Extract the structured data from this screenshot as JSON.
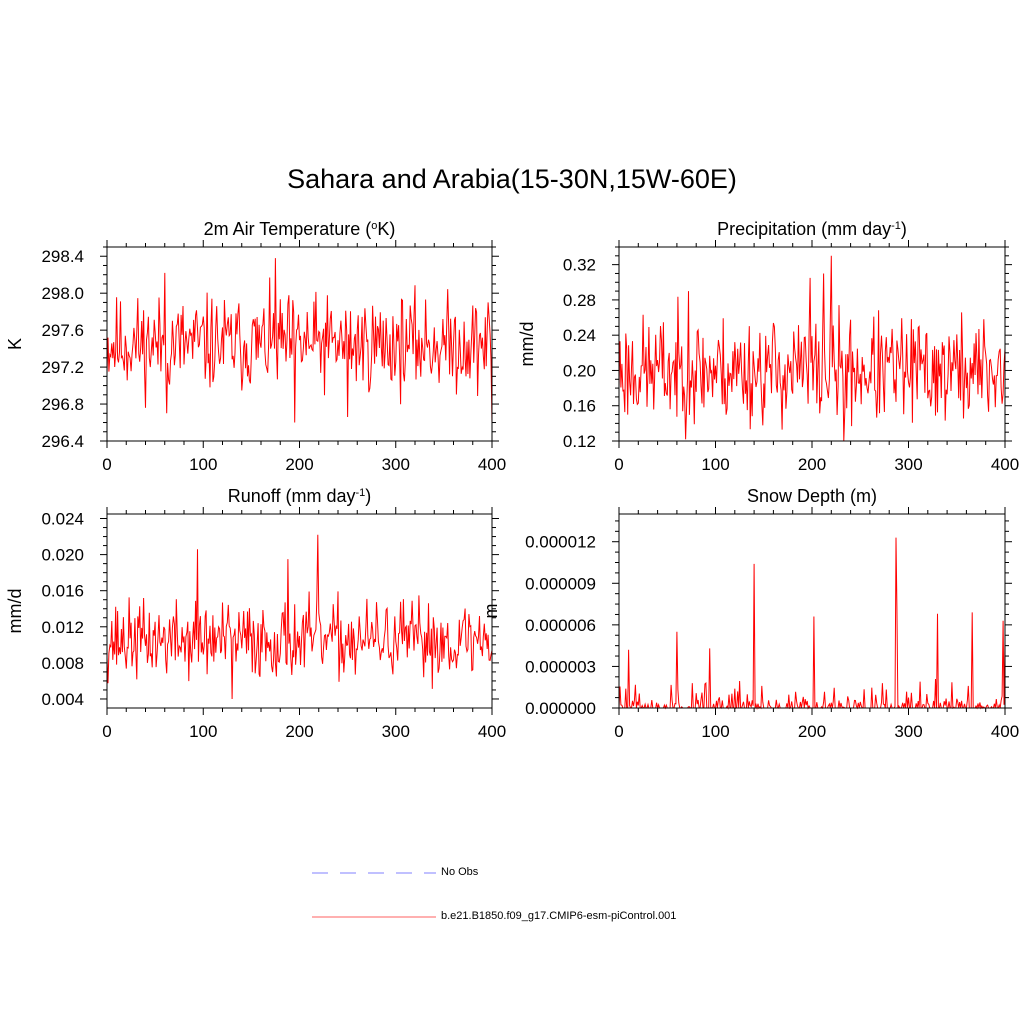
{
  "title": "Sahara and Arabia(15-30N,15W-60E)",
  "legend": [
    {
      "label": "No Obs",
      "color": "#9b9bff",
      "dash": true
    },
    {
      "label": "b.e21.B1850.f09_g17.CMIP6-esm-piControl.001",
      "color": "#ff8080",
      "dash": false
    }
  ],
  "chart_data": [
    {
      "type": "line",
      "title": "2m Air Temperature (",
      "title_sup": "o",
      "title_tail": "K)",
      "ylabel": "K",
      "xlim": [
        0,
        400
      ],
      "ylim": [
        296.4,
        298.5
      ],
      "xticks": [
        0,
        100,
        200,
        300,
        400
      ],
      "yticks": [
        "296.4",
        "296.8",
        "297.2",
        "297.6",
        "298.0",
        "298.4"
      ],
      "color": "#ff0000",
      "series": [
        {
          "mean": 297.45,
          "amp": 0.42,
          "min": 296.58,
          "max": 298.38,
          "seed": 11,
          "spikes": [
            [
              60,
              298.22
            ],
            [
              175,
              298.38
            ],
            [
              195,
              296.6
            ],
            [
              400,
              296.58
            ],
            [
              62,
              296.7
            ],
            [
              250,
              296.66
            ]
          ]
        }
      ]
    },
    {
      "type": "line",
      "title": "Precipitation (mm day",
      "title_sup": "-1",
      "title_tail": ")",
      "ylabel": "mm/d",
      "xlim": [
        0,
        400
      ],
      "ylim": [
        0.12,
        0.34
      ],
      "xticks": [
        0,
        100,
        200,
        300,
        400
      ],
      "yticks": [
        "0.12",
        "0.16",
        "0.20",
        "0.24",
        "0.28",
        "0.32"
      ],
      "color": "#ff0000",
      "series": [
        {
          "mean": 0.2,
          "amp": 0.05,
          "min": 0.12,
          "max": 0.33,
          "seed": 23,
          "spikes": [
            [
              220,
              0.33
            ],
            [
              212,
              0.31
            ],
            [
              233,
              0.12
            ],
            [
              198,
              0.305
            ],
            [
              72,
              0.29
            ]
          ]
        }
      ]
    },
    {
      "type": "line",
      "title": "Runoff (mm day",
      "title_sup": "-1",
      "title_tail": ")",
      "ylabel": "mm/d",
      "xlim": [
        0,
        400
      ],
      "ylim": [
        0.003,
        0.0245
      ],
      "xticks": [
        0,
        100,
        200,
        300,
        400
      ],
      "yticks": [
        "0.004",
        "0.008",
        "0.012",
        "0.016",
        "0.020",
        "0.024"
      ],
      "color": "#ff0000",
      "series": [
        {
          "mean": 0.0105,
          "amp": 0.0035,
          "min": 0.004,
          "max": 0.0222,
          "seed": 37,
          "spikes": [
            [
              219,
              0.0222
            ],
            [
              94,
              0.0206
            ],
            [
              188,
              0.0195
            ],
            [
              130,
              0.004
            ]
          ]
        }
      ]
    },
    {
      "type": "line",
      "title": "Snow Depth (m)",
      "title_sup": "",
      "title_tail": "",
      "ylabel": "m",
      "xlim": [
        0,
        400
      ],
      "ylim": [
        0,
        1.4e-05
      ],
      "xticks": [
        0,
        100,
        200,
        300,
        400
      ],
      "yticks": [
        "0.000000",
        "0.000003",
        "0.000006",
        "0.000009",
        "0.000012"
      ],
      "ytick_values": [
        0,
        3e-06,
        6e-06,
        9e-06,
        1.2e-05
      ],
      "color": "#ff0000",
      "series": [
        {
          "mean": 2e-07,
          "amp": 6e-07,
          "min": 0,
          "max": 1.23e-05,
          "seed": 51,
          "sparse": true,
          "spikes": [
            [
              287,
              1.23e-05
            ],
            [
              140,
              1.04e-05
            ],
            [
              288,
              7.3e-06
            ],
            [
              202,
              6.6e-06
            ],
            [
              330,
              6.8e-06
            ],
            [
              366,
              6.9e-06
            ],
            [
              60,
              5.5e-06
            ],
            [
              398,
              6.3e-06
            ],
            [
              94,
              4.3e-06
            ],
            [
              10,
              4.2e-06
            ],
            [
              400,
              4.8e-06
            ]
          ]
        }
      ]
    }
  ]
}
